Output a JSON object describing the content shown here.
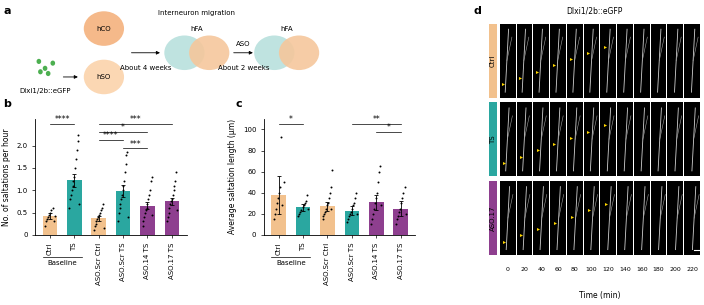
{
  "diagram": {
    "panel": "a",
    "texts": {
      "hco": "hCO",
      "hso": "hSO",
      "virus": "Dlxi1/2b::eGFP",
      "migration": "Interneuron migration",
      "hfa_1": "hFA",
      "weeks_1": "About 4 weeks",
      "aso": "ASO",
      "weeks_2": "About 2 weeks",
      "hfa_2": "hFA"
    }
  },
  "chart_data": [
    {
      "type": "bar",
      "panel": "b",
      "y_label": "No. of saltations per hour",
      "categories": [
        "Ctrl",
        "TS",
        "ASO.Scr Ctrl",
        "ASO.Scr TS",
        "ASO.14 TS",
        "ASO.17 TS"
      ],
      "values": [
        0.42,
        1.22,
        0.37,
        0.98,
        0.65,
        0.75
      ],
      "errors": [
        0.06,
        0.15,
        0.05,
        0.13,
        0.08,
        0.08
      ],
      "points": [
        [
          0.2,
          0.3,
          0.35,
          0.4,
          0.45,
          0.5,
          0.55,
          0.6,
          0.3,
          0.42
        ],
        [
          0.6,
          0.8,
          0.9,
          1.0,
          1.1,
          1.2,
          1.3,
          1.5,
          1.7,
          1.9,
          2.1,
          2.25,
          0.7
        ],
        [
          0.1,
          0.2,
          0.25,
          0.3,
          0.35,
          0.4,
          0.45,
          0.5,
          0.55,
          0.6,
          0.7,
          0.15
        ],
        [
          0.3,
          0.5,
          0.6,
          0.7,
          0.8,
          0.9,
          1.0,
          1.1,
          1.2,
          1.4,
          1.6,
          1.8,
          1.85,
          0.4
        ],
        [
          0.2,
          0.3,
          0.4,
          0.5,
          0.55,
          0.6,
          0.7,
          0.8,
          0.9,
          1.0,
          1.2,
          1.3,
          0.45
        ],
        [
          0.3,
          0.4,
          0.5,
          0.6,
          0.7,
          0.75,
          0.8,
          0.9,
          1.0,
          1.1,
          1.2,
          1.4,
          0.55
        ]
      ],
      "colors": [
        "#f2c18d",
        "#2aa7a0",
        "#f2c18d",
        "#2aa7a0",
        "#8e3f8f",
        "#8e3f8f"
      ],
      "ylim": [
        0,
        2.6
      ],
      "yticks": [
        0,
        0.5,
        {
          "value": 1,
          "label": "1.0"
        },
        1.5,
        {
          "value": 2,
          "label": "2.0"
        }
      ],
      "group_label": {
        "text": "Baseline",
        "categories": [
          "Ctrl",
          "TS"
        ]
      },
      "significance": [
        {
          "label": "****",
          "from": "Ctrl",
          "to": "TS"
        },
        {
          "label": "***",
          "from": "ASO.Scr Ctrl",
          "to": "ASO.17 TS"
        },
        {
          "label": "*",
          "from": "ASO.Scr Ctrl",
          "to": "ASO.14 TS"
        },
        {
          "label": "****",
          "from": "ASO.Scr Ctrl",
          "to": "ASO.Scr TS"
        },
        {
          "label": "***",
          "from": "ASO.Scr TS",
          "to": "ASO.14 TS"
        }
      ]
    },
    {
      "type": "bar",
      "panel": "c",
      "y_label": "Average saltation length (μm)",
      "categories": [
        "Ctrl",
        "TS",
        "ASO.Scr Ctrl",
        "ASO.Scr TS",
        "ASO.14 TS",
        "ASO.17 TS"
      ],
      "values": [
        38,
        26,
        27,
        23,
        31,
        25
      ],
      "errors": [
        18,
        3,
        4,
        4,
        7,
        7
      ],
      "points": [
        [
          15,
          20,
          25,
          30,
          35,
          40,
          45,
          93,
          28,
          50
        ],
        [
          18,
          20,
          22,
          24,
          26,
          28,
          30,
          32,
          38,
          25
        ],
        [
          15,
          18,
          20,
          22,
          25,
          28,
          30,
          35,
          40,
          45,
          25,
          62
        ],
        [
          12,
          15,
          18,
          20,
          22,
          25,
          28,
          30,
          35,
          40,
          20
        ],
        [
          10,
          15,
          20,
          25,
          30,
          35,
          40,
          50,
          60,
          65,
          28
        ],
        [
          10,
          15,
          18,
          22,
          25,
          30,
          35,
          40,
          45,
          20
        ]
      ],
      "colors": [
        "#f2c18d",
        "#2aa7a0",
        "#f2c18d",
        "#2aa7a0",
        "#8e3f8f",
        "#8e3f8f"
      ],
      "ylim": [
        0,
        110
      ],
      "yticks": [
        0,
        20,
        40,
        60,
        80,
        100
      ],
      "group_label": {
        "text": "Baseline",
        "categories": [
          "Ctrl",
          "TS"
        ]
      },
      "significance": [
        {
          "label": "*",
          "from": "Ctrl",
          "to": "TS"
        },
        {
          "label": "**",
          "from": "ASO.Scr TS",
          "to": "ASO.17 TS"
        },
        {
          "label": "*",
          "from": "ASO.14 TS",
          "to": "ASO.17 TS"
        }
      ]
    }
  ],
  "images": {
    "panel": "d",
    "title": "Dlxi1/2b::eGFP",
    "rows": [
      {
        "label": "Ctrl",
        "color": "#f2c18d"
      },
      {
        "label": "TS",
        "color": "#2aa7a0"
      },
      {
        "label": "ASO.17",
        "color": "#8e3f8f"
      }
    ],
    "times": [
      0,
      20,
      40,
      60,
      80,
      100,
      120,
      140,
      160,
      180,
      200,
      220
    ],
    "x_label": "Time (min)"
  }
}
